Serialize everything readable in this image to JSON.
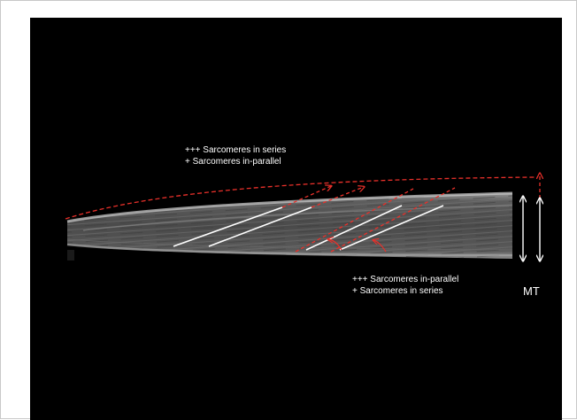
{
  "annotations": {
    "top_line1": "+++ Sarcomeres in series",
    "top_line2": "+ Sarcomeres in-parallel",
    "bottom_line1": "+++ Sarcomeres in-parallel",
    "bottom_line2": "+ Sarcomeres in series",
    "mt": "MT"
  },
  "colors": {
    "background": "#000000",
    "fascicle_white": "#ffffff",
    "dashed_red": "#e8302a",
    "ultrasound_gray": "#8a8a8a"
  }
}
